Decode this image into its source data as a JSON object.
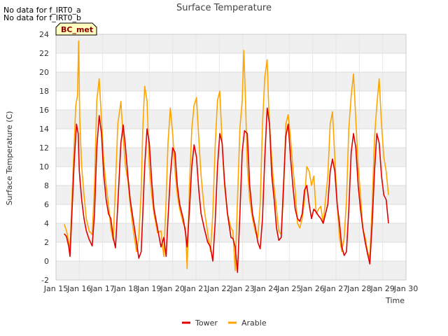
{
  "no_data_messages": [
    "No data for f_IRT0_a",
    "No data for f_IRT0_b"
  ],
  "badge": "BC_met",
  "colors": {
    "Tower": "#e00000",
    "Arable": "#ffa500",
    "band": "#f0f0f0",
    "badge_fill": "#ffffc0",
    "badge_text": "#8b0000"
  },
  "chart_data": {
    "type": "line",
    "title": "Surface Temperature",
    "xlabel": "Time",
    "ylabel": "Surface Temperature (C)",
    "xlim": [
      15,
      30
    ],
    "ylim": [
      -2,
      24
    ],
    "xticks": [
      15,
      16,
      17,
      18,
      19,
      20,
      21,
      22,
      23,
      24,
      25,
      26,
      27,
      28,
      29,
      30
    ],
    "xtick_labels": [
      "Jan 15",
      "Jan 16",
      "Jan 17",
      "Jan 18",
      "Jan 19",
      "Jan 20",
      "Jan 21",
      "Jan 22",
      "Jan 23",
      "Jan 24",
      "Jan 25",
      "Jan 26",
      "Jan 27",
      "Jan 28",
      "Jan 29",
      "Jan 30"
    ],
    "yticks": [
      -2,
      0,
      2,
      4,
      6,
      8,
      10,
      12,
      14,
      16,
      18,
      20,
      22,
      24
    ],
    "legend_position": "bottom-center",
    "series": [
      {
        "name": "Tower",
        "color": "#e00000",
        "x": [
          15.35,
          15.45,
          15.55,
          15.6,
          15.68,
          15.78,
          15.88,
          15.95,
          16.0,
          16.1,
          16.2,
          16.3,
          16.42,
          16.55,
          16.65,
          16.75,
          16.85,
          16.95,
          17.05,
          17.15,
          17.25,
          17.35,
          17.45,
          17.55,
          17.65,
          17.78,
          17.88,
          17.98,
          18.08,
          18.18,
          18.3,
          18.45,
          18.55,
          18.65,
          18.72,
          18.8,
          18.9,
          19.0,
          19.1,
          19.2,
          19.35,
          19.5,
          19.62,
          19.72,
          19.8,
          19.9,
          20.0,
          20.1,
          20.2,
          20.3,
          20.45,
          20.55,
          20.62,
          20.72,
          20.82,
          20.92,
          21.02,
          21.12,
          21.22,
          21.35,
          21.5,
          21.62,
          21.72,
          21.82,
          21.92,
          22.02,
          22.12,
          22.22,
          22.35,
          22.5,
          22.58,
          22.68,
          22.78,
          22.88,
          22.98,
          23.08,
          23.2,
          23.3,
          23.42,
          23.55,
          23.65,
          23.75,
          23.85,
          23.95,
          24.05,
          24.15,
          24.25,
          24.35,
          24.45,
          24.55,
          24.65,
          24.75,
          24.85,
          24.95,
          25.05,
          25.15,
          25.25,
          25.35,
          25.45,
          25.55,
          25.65,
          25.75,
          25.85,
          25.95,
          26.05,
          26.15,
          26.25,
          26.35,
          26.45,
          26.55,
          26.65,
          26.75,
          26.85,
          26.95,
          27.05,
          27.15,
          27.25,
          27.35,
          27.45,
          27.55,
          27.65,
          27.75,
          27.85,
          27.95,
          28.05,
          28.15,
          28.25,
          28.35,
          28.45,
          28.55,
          28.65,
          28.75,
          28.85,
          28.95,
          29.05,
          29.15,
          29.25
        ],
        "y": [
          2.9,
          2.6,
          1.5,
          0.5,
          5.0,
          10.5,
          14.5,
          13.5,
          9.5,
          6.5,
          4.5,
          3.2,
          2.3,
          1.6,
          5.0,
          12.0,
          15.4,
          13.5,
          9.0,
          6.5,
          5.0,
          4.5,
          2.5,
          1.4,
          6.0,
          12.5,
          14.4,
          12.0,
          9.0,
          6.5,
          4.5,
          2.0,
          0.3,
          1.0,
          5.0,
          10.0,
          14.0,
          12.5,
          8.5,
          5.5,
          3.5,
          1.5,
          2.5,
          0.5,
          4.5,
          9.0,
          12.0,
          11.5,
          8.0,
          6.0,
          4.5,
          3.0,
          1.5,
          5.5,
          10.0,
          12.3,
          11.0,
          7.5,
          5.0,
          3.5,
          2.0,
          1.5,
          0.0,
          4.0,
          10.0,
          13.5,
          12.5,
          8.5,
          5.0,
          2.5,
          2.4,
          1.5,
          -1.2,
          5.0,
          11.5,
          13.8,
          13.5,
          8.0,
          5.0,
          3.5,
          2.0,
          1.3,
          4.5,
          11.0,
          16.2,
          14.5,
          9.0,
          6.5,
          3.5,
          2.2,
          2.5,
          8.0,
          13.2,
          14.5,
          11.0,
          8.0,
          5.5,
          4.5,
          4.2,
          5.0,
          7.5,
          8.0,
          6.0,
          4.5,
          5.5,
          5.2,
          4.8,
          4.5,
          4.0,
          5.0,
          6.0,
          9.5,
          10.8,
          9.5,
          6.0,
          4.0,
          1.5,
          0.6,
          1.0,
          5.5,
          11.5,
          13.5,
          12.0,
          8.0,
          5.5,
          3.5,
          2.0,
          0.8,
          -0.3,
          4.0,
          9.5,
          13.5,
          12.5,
          9.0,
          7.0,
          6.5,
          4.0
        ]
      },
      {
        "name": "Arable",
        "color": "#ffa500",
        "x": [
          15.35,
          15.45,
          15.55,
          15.6,
          15.68,
          15.78,
          15.85,
          15.92,
          15.97,
          16.02,
          16.1,
          16.2,
          16.3,
          16.42,
          16.55,
          16.65,
          16.75,
          16.85,
          16.95,
          17.05,
          17.15,
          17.25,
          17.35,
          17.45,
          17.55,
          17.65,
          17.78,
          17.88,
          17.98,
          18.08,
          18.18,
          18.3,
          18.45,
          18.55,
          18.65,
          18.72,
          18.8,
          18.9,
          19.0,
          19.1,
          19.2,
          19.35,
          19.5,
          19.62,
          19.72,
          19.8,
          19.9,
          20.0,
          20.1,
          20.2,
          20.3,
          20.45,
          20.55,
          20.62,
          20.72,
          20.82,
          20.92,
          21.02,
          21.12,
          21.22,
          21.35,
          21.5,
          21.62,
          21.72,
          21.82,
          21.92,
          22.02,
          22.12,
          22.22,
          22.35,
          22.5,
          22.58,
          22.68,
          22.78,
          22.88,
          22.98,
          23.05,
          23.12,
          23.2,
          23.3,
          23.42,
          23.55,
          23.65,
          23.75,
          23.85,
          23.95,
          24.05,
          24.12,
          24.2,
          24.3,
          24.45,
          24.55,
          24.65,
          24.75,
          24.85,
          24.95,
          25.05,
          25.15,
          25.25,
          25.35,
          25.45,
          25.55,
          25.65,
          25.75,
          25.85,
          25.95,
          26.05,
          26.15,
          26.25,
          26.35,
          26.45,
          26.55,
          26.65,
          26.75,
          26.85,
          26.95,
          27.05,
          27.15,
          27.25,
          27.35,
          27.45,
          27.55,
          27.65,
          27.75,
          27.85,
          27.95,
          28.05,
          28.15,
          28.25,
          28.35,
          28.45,
          28.55,
          28.65,
          28.75,
          28.85,
          28.95,
          29.05,
          29.15,
          29.25
        ],
        "y": [
          3.9,
          3.2,
          2.0,
          1.0,
          6.5,
          12.5,
          16.5,
          17.5,
          23.3,
          15.0,
          10.0,
          7.0,
          4.5,
          3.2,
          2.8,
          8.0,
          17.0,
          19.3,
          15.0,
          10.5,
          8.0,
          6.0,
          3.5,
          2.2,
          8.0,
          14.5,
          16.9,
          13.0,
          10.0,
          8.5,
          6.0,
          3.5,
          1.0,
          2.5,
          7.5,
          14.0,
          18.5,
          17.0,
          10.0,
          7.0,
          5.0,
          3.0,
          3.2,
          0.5,
          6.5,
          12.5,
          16.2,
          13.5,
          9.5,
          7.0,
          5.5,
          4.0,
          3.5,
          -0.8,
          8.0,
          14.0,
          16.5,
          17.3,
          13.0,
          9.0,
          5.5,
          3.0,
          1.0,
          5.0,
          12.0,
          17.0,
          18.0,
          12.5,
          8.0,
          5.0,
          3.5,
          3.2,
          -1.0,
          6.5,
          14.0,
          17.0,
          22.3,
          17.0,
          10.0,
          6.5,
          4.5,
          3.0,
          2.5,
          6.0,
          14.5,
          19.5,
          21.3,
          16.0,
          12.5,
          9.0,
          5.5,
          3.2,
          2.8,
          7.0,
          14.5,
          15.5,
          13.0,
          10.0,
          7.5,
          4.0,
          3.5,
          4.5,
          6.5,
          10.0,
          9.5,
          8.0,
          9.0,
          5.0,
          5.5,
          5.8,
          4.0,
          6.5,
          9.0,
          14.5,
          15.8,
          11.0,
          6.0,
          2.5,
          1.0,
          2.5,
          6.5,
          14.0,
          17.5,
          19.8,
          15.0,
          10.0,
          7.0,
          3.5,
          2.5,
          1.0,
          0.3,
          6.0,
          13.0,
          16.5,
          19.3,
          14.5,
          11.0,
          9.5,
          7.0
        ]
      }
    ]
  }
}
